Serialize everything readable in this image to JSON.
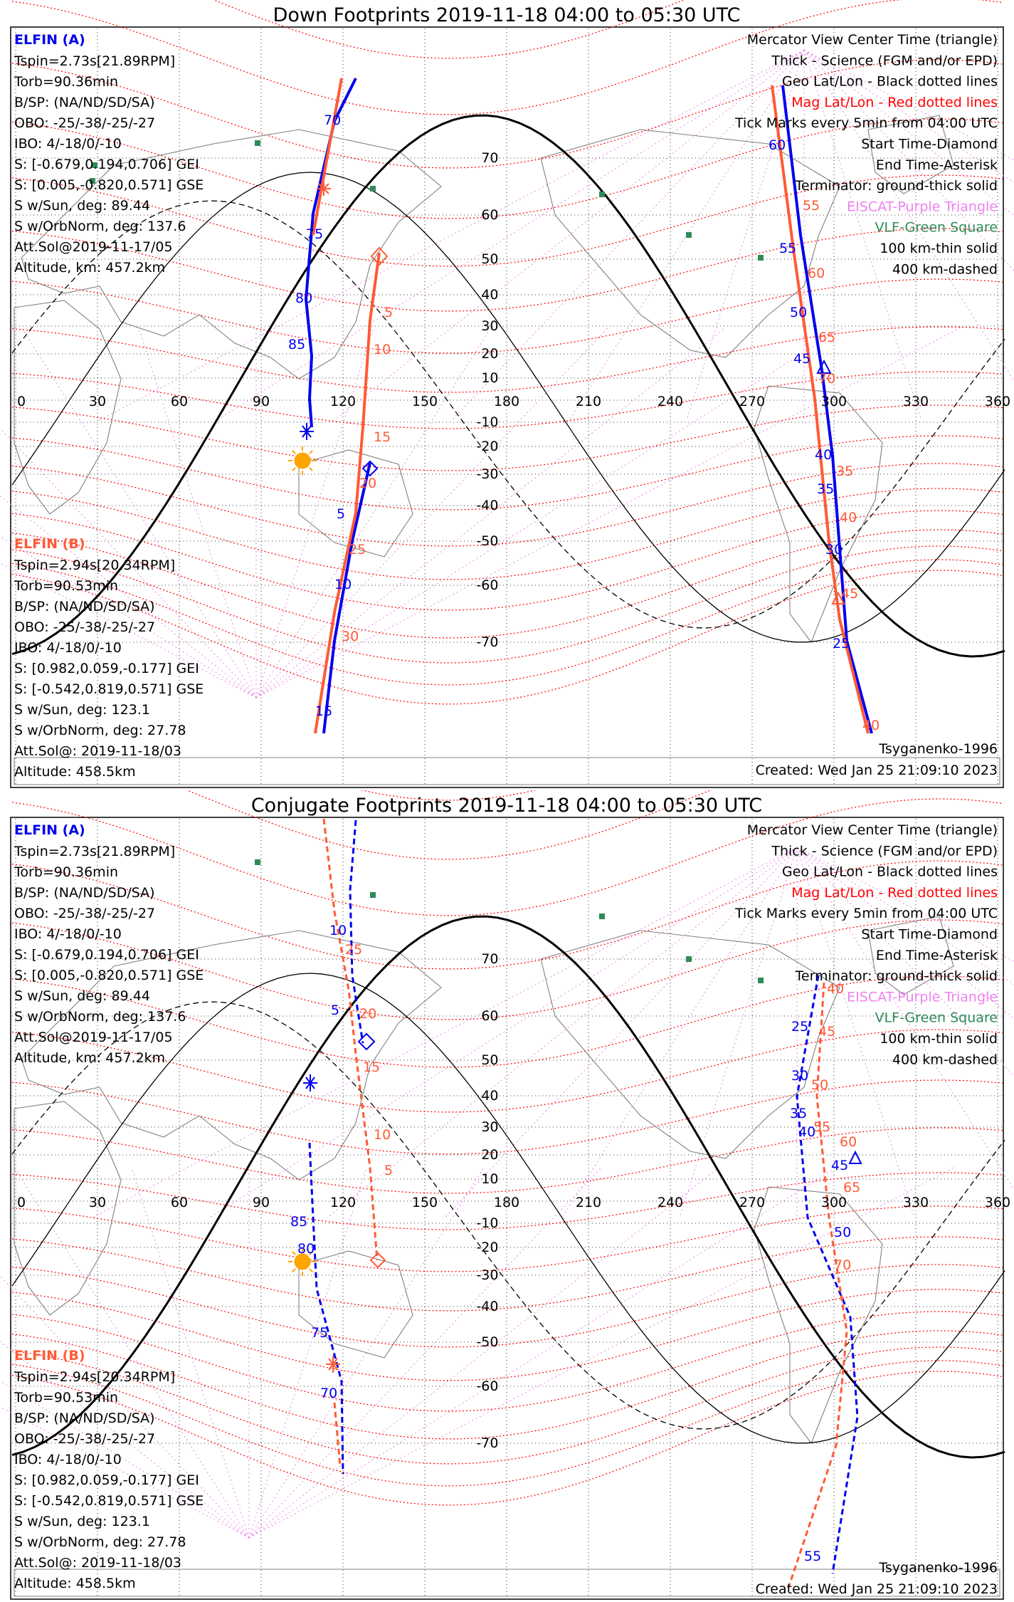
{
  "panels": [
    {
      "title": "Down Footprints 2019-11-18 04:00 to 05:30 UTC",
      "elfin_a": {
        "header": "ELFIN (A)",
        "lines": [
          "Tspin=2.73s[21.89RPM]",
          "Torb=90.36min",
          "B/SP: (NA/ND/SD/SA)",
          "OBO: -25/-38/-25/-27",
          "IBO: 4/-18/0/-10",
          "S: [-0.679,0.194,0.706] GEI",
          "S: [0.005,-0.820,0.571] GSE",
          "S w/Sun, deg: 89.44",
          "S w/OrbNorm, deg: 137.6",
          "Att.Sol@2019-11-17/05",
          "Altitude, km: 457.2km"
        ]
      },
      "elfin_b": {
        "header": "ELFIN (B)",
        "lines": [
          "Tspin=2.94s[20.34RPM]",
          "Torb=90.53min",
          "B/SP: (NA/ND/SD/SA)",
          "OBO: -25/-38/-25/-27",
          "IBO: 4/-18/0/-10",
          "S: [0.982,0.059,-0.177] GEI",
          "S: [-0.542,0.819,0.571] GSE",
          "S w/Sun, deg: 123.1",
          "S w/OrbNorm, deg: 27.78",
          "Att.Sol@: 2019-11-18/03",
          "Altitude: 458.5km"
        ]
      },
      "credit": "Tsyganenko-1996",
      "created": "Created: Wed Jan 25 21:09:10 2023"
    },
    {
      "title": "Conjugate Footprints 2019-11-18 04:00 to 05:30 UTC",
      "elfin_a": {
        "header": "ELFIN (A)",
        "lines": [
          "Tspin=2.73s[21.89RPM]",
          "Torb=90.36min",
          "B/SP: (NA/ND/SD/SA)",
          "OBO: -25/-38/-25/-27",
          "IBO: 4/-18/0/-10",
          "S: [-0.679,0.194,0.706] GEI",
          "S: [0.005,-0.820,0.571] GSE",
          "S w/Sun, deg: 89.44",
          "S w/OrbNorm, deg: 137.6",
          "Att.Sol@2019-11-17/05",
          "Altitude, km: 457.2km"
        ]
      },
      "elfin_b": {
        "header": "ELFIN (B)",
        "lines": [
          "Tspin=2.94s[20.34RPM]",
          "Torb=90.53min",
          "B/SP: (NA/ND/SD/SA)",
          "OBO: -25/-38/-25/-27",
          "IBO: 4/-18/0/-10",
          "S: [0.982,0.059,-0.177] GEI",
          "S: [-0.542,0.819,0.571] GSE",
          "S w/Sun, deg: 123.1",
          "S w/OrbNorm, deg: 27.78",
          "Att.Sol@: 2019-11-18/03",
          "Altitude: 458.5km"
        ]
      },
      "credit": "Tsyganenko-1996",
      "created": "Created: Wed Jan 25 21:09:10 2023"
    }
  ],
  "legend": {
    "lines": [
      {
        "text": "Mercator View Center Time (triangle)",
        "color": "#000000"
      },
      {
        "text": "Thick - Science (FGM and/or EPD)",
        "color": "#000000"
      },
      {
        "text": "Geo Lat/Lon - Black dotted lines",
        "color": "#000000"
      },
      {
        "text": "Mag Lat/Lon - Red dotted lines",
        "color": "#ff0000"
      },
      {
        "text": "Tick Marks every 5min from 04:00 UTC",
        "color": "#000000"
      },
      {
        "text": "Start Time-Diamond",
        "color": "#000000"
      },
      {
        "text": "End Time-Asterisk",
        "color": "#000000"
      },
      {
        "text": "Terminator: ground-thick solid",
        "color": "#000000"
      },
      {
        "text": "EISCAT-Purple Triangle",
        "color": "#ee82ee"
      },
      {
        "text": "VLF-Green Square",
        "color": "#2e8b57"
      },
      {
        "text": "100 km-thin solid",
        "color": "#000000"
      },
      {
        "text": "400 km-dashed",
        "color": "#000000"
      }
    ]
  },
  "colors": {
    "elfin_a": "#0000ee",
    "elfin_b": "#ff5a36",
    "mag_grid": "#ff0000",
    "eiscat": "#ee82ee",
    "vlf": "#2e8b57",
    "sun": "#ffa500"
  },
  "map": {
    "lon_ticks": [
      "0",
      "30",
      "60",
      "90",
      "120",
      "150",
      "180",
      "210",
      "240",
      "270",
      "300",
      "330",
      "360"
    ],
    "lat_ticks": [
      "70",
      "60",
      "50",
      "40",
      "30",
      "20",
      "10",
      "-10",
      "-20",
      "-30",
      "-40",
      "-50",
      "-60",
      "-70"
    ]
  },
  "tracks": {
    "down": {
      "a": {
        "labels": [
          "70",
          "75",
          "80",
          "85",
          "5",
          "10",
          "15",
          "60",
          "55",
          "50",
          "45",
          "40",
          "35",
          "30",
          "25"
        ]
      },
      "b": {
        "labels": [
          "5",
          "10",
          "15",
          "20",
          "25",
          "30",
          "55",
          "60",
          "65",
          "70",
          "35",
          "40",
          "45",
          "40"
        ]
      }
    },
    "conj": {
      "a": {
        "labels": [
          "10",
          "5",
          "85",
          "80",
          "75",
          "70",
          "25",
          "30",
          "35",
          "40",
          "45",
          "50",
          "55"
        ]
      },
      "b": {
        "labels": [
          "25",
          "20",
          "15",
          "10",
          "5",
          "40",
          "45",
          "50",
          "55",
          "60",
          "65",
          "70"
        ]
      }
    }
  }
}
